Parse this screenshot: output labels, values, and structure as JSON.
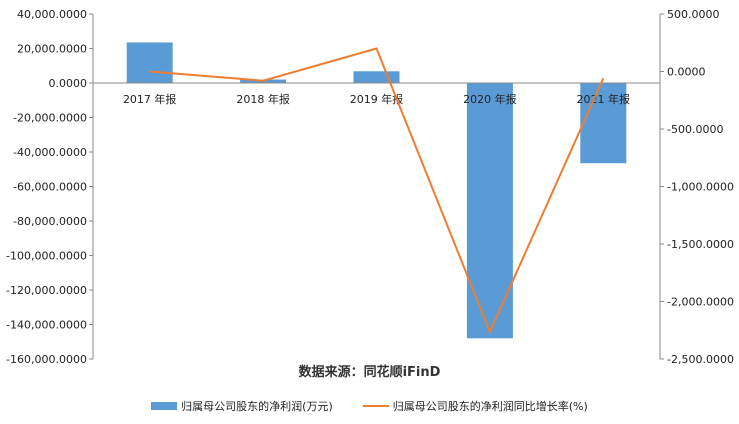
{
  "chart_data": {
    "type": "bar",
    "categories": [
      "2017 年报",
      "2018 年报",
      "2019 年报",
      "2020 年报",
      "2021 年报"
    ],
    "series": [
      {
        "name": "归属母公司股东的净利润(万元)",
        "type": "bar",
        "axis": "left",
        "values": [
          23500,
          2000,
          6800,
          -148000,
          -46500
        ]
      },
      {
        "name": "归属母公司股东的净利润同比增长率(%)",
        "type": "line",
        "axis": "right",
        "values": [
          0,
          -80,
          200,
          -2265,
          -60
        ]
      }
    ],
    "ylim_left": [
      -160000,
      40000
    ],
    "ylim_right": [
      -2500,
      500
    ],
    "yticks_left": [
      "40,000.0000",
      "20,000.0000",
      "0.0000",
      "-20,000.0000",
      "-40,000.0000",
      "-60,000.0000",
      "-80,000.0000",
      "-100,000.0000",
      "-120,000.0000",
      "-140,000.0000",
      "-160,000.0000"
    ],
    "yticks_right": [
      "500.0000",
      "0.0000",
      "-500.0000",
      "-1,000.0000",
      "-1,500.0000",
      "-2,000.0000",
      "-2,500.0000"
    ],
    "grid": false,
    "legend_position": "bottom",
    "colors": {
      "bar": "#5b9bd5",
      "line": "#ed7d31",
      "axis": "#888888"
    }
  },
  "source_text": "数据来源：同花顺iFinD"
}
